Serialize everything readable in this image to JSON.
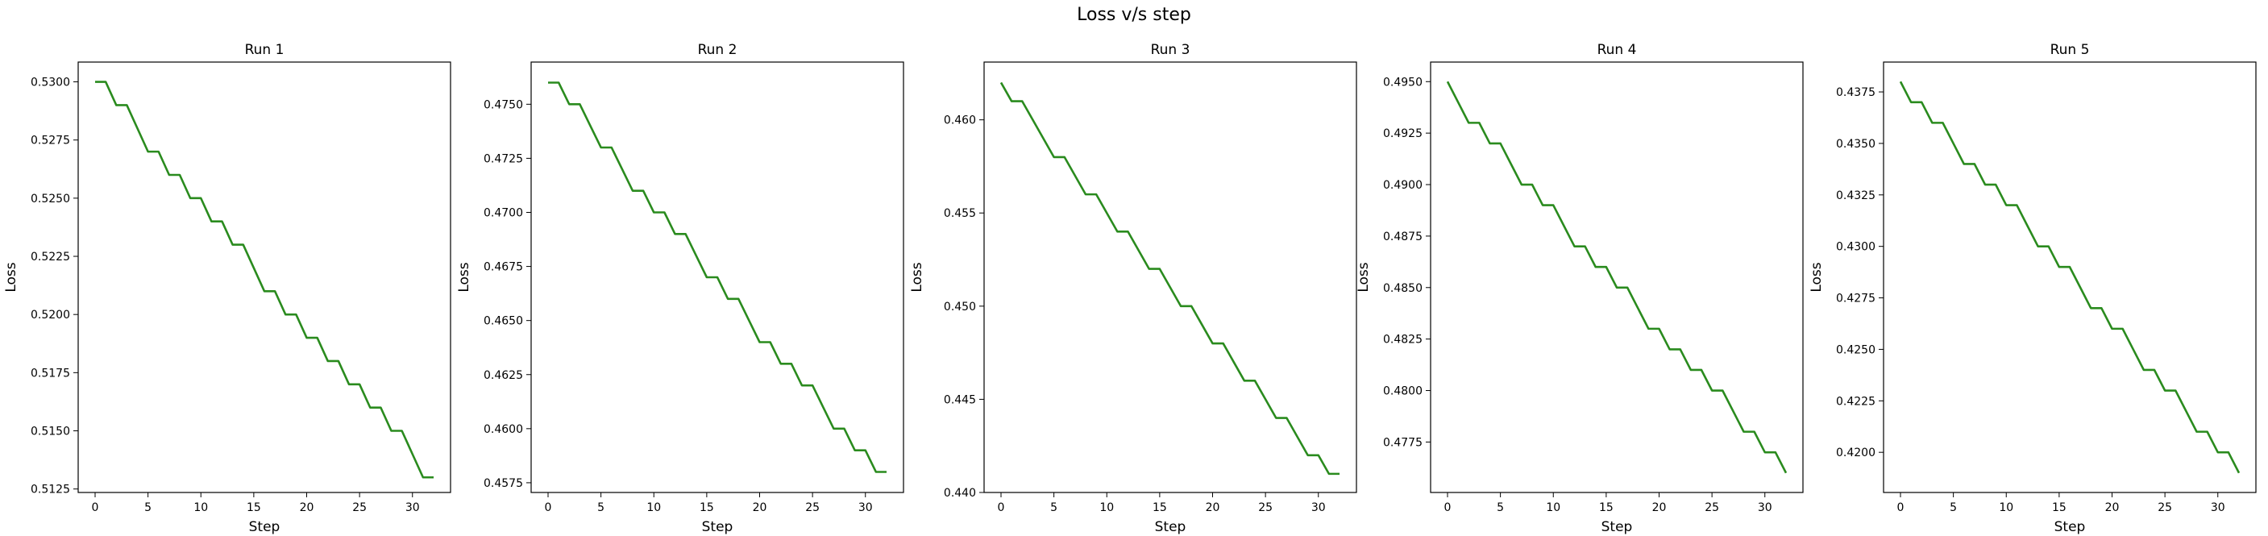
{
  "figure": {
    "title": "Loss v/s step",
    "line_color": "#2a8b1e"
  },
  "chart_data": [
    {
      "type": "line",
      "title": "Run 1",
      "xlabel": "Step",
      "ylabel": "Loss",
      "xlim": [
        -1.6,
        33.6
      ],
      "ylim": [
        0.51235,
        0.53085
      ],
      "xticks": [
        0,
        5,
        10,
        15,
        20,
        25,
        30
      ],
      "yticks": [
        0.5125,
        0.515,
        0.5175,
        0.52,
        0.5225,
        0.525,
        0.5275,
        0.53
      ],
      "ytick_labels": [
        "0.5125",
        "0.5150",
        "0.5175",
        "0.5200",
        "0.5225",
        "0.5250",
        "0.5275",
        "0.5300"
      ],
      "grid": false,
      "x": [
        0,
        1,
        2,
        3,
        4,
        5,
        6,
        7,
        8,
        9,
        10,
        11,
        12,
        13,
        14,
        15,
        16,
        17,
        18,
        19,
        20,
        21,
        22,
        23,
        24,
        25,
        26,
        27,
        28,
        29,
        30,
        31,
        32
      ],
      "y": [
        0.53,
        0.53,
        0.529,
        0.529,
        0.528,
        0.527,
        0.527,
        0.526,
        0.526,
        0.525,
        0.525,
        0.524,
        0.524,
        0.523,
        0.523,
        0.522,
        0.521,
        0.521,
        0.52,
        0.52,
        0.519,
        0.519,
        0.518,
        0.518,
        0.517,
        0.517,
        0.516,
        0.516,
        0.515,
        0.515,
        0.514,
        0.513,
        0.513
      ]
    },
    {
      "type": "line",
      "title": "Run 2",
      "xlabel": "Step",
      "ylabel": "Loss",
      "xlim": [
        -1.6,
        33.6
      ],
      "ylim": [
        0.45705,
        0.47695
      ],
      "xticks": [
        0,
        5,
        10,
        15,
        20,
        25,
        30
      ],
      "yticks": [
        0.4575,
        0.46,
        0.4625,
        0.465,
        0.4675,
        0.47,
        0.4725,
        0.475
      ],
      "ytick_labels": [
        "0.4575",
        "0.4600",
        "0.4625",
        "0.4650",
        "0.4675",
        "0.4700",
        "0.4725",
        "0.4750"
      ],
      "grid": false,
      "x": [
        0,
        1,
        2,
        3,
        4,
        5,
        6,
        7,
        8,
        9,
        10,
        11,
        12,
        13,
        14,
        15,
        16,
        17,
        18,
        19,
        20,
        21,
        22,
        23,
        24,
        25,
        26,
        27,
        28,
        29,
        30,
        31,
        32
      ],
      "y": [
        0.476,
        0.476,
        0.475,
        0.475,
        0.474,
        0.473,
        0.473,
        0.472,
        0.471,
        0.471,
        0.47,
        0.47,
        0.469,
        0.469,
        0.468,
        0.467,
        0.467,
        0.466,
        0.466,
        0.465,
        0.464,
        0.464,
        0.463,
        0.463,
        0.462,
        0.462,
        0.461,
        0.46,
        0.46,
        0.459,
        0.459,
        0.458,
        0.458
      ]
    },
    {
      "type": "line",
      "title": "Run 3",
      "xlabel": "Step",
      "ylabel": "Loss",
      "xlim": [
        -1.6,
        33.6
      ],
      "ylim": [
        0.44,
        0.4631
      ],
      "xticks": [
        0,
        5,
        10,
        15,
        20,
        25,
        30
      ],
      "yticks": [
        0.44,
        0.445,
        0.45,
        0.455,
        0.46
      ],
      "ytick_labels": [
        "0.440",
        "0.445",
        "0.450",
        "0.455",
        "0.460"
      ],
      "grid": false,
      "x": [
        0,
        1,
        2,
        3,
        4,
        5,
        6,
        7,
        8,
        9,
        10,
        11,
        12,
        13,
        14,
        15,
        16,
        17,
        18,
        19,
        20,
        21,
        22,
        23,
        24,
        25,
        26,
        27,
        28,
        29,
        30,
        31,
        32
      ],
      "y": [
        0.462,
        0.461,
        0.461,
        0.46,
        0.459,
        0.458,
        0.458,
        0.457,
        0.456,
        0.456,
        0.455,
        0.454,
        0.454,
        0.453,
        0.452,
        0.452,
        0.451,
        0.45,
        0.45,
        0.449,
        0.448,
        0.448,
        0.447,
        0.446,
        0.446,
        0.445,
        0.444,
        0.444,
        0.443,
        0.442,
        0.442,
        0.441,
        0.441
      ]
    },
    {
      "type": "line",
      "title": "Run 4",
      "xlabel": "Step",
      "ylabel": "Loss",
      "xlim": [
        -1.6,
        33.6
      ],
      "ylim": [
        0.47505,
        0.49595
      ],
      "xticks": [
        0,
        5,
        10,
        15,
        20,
        25,
        30
      ],
      "yticks": [
        0.4775,
        0.48,
        0.4825,
        0.485,
        0.4875,
        0.49,
        0.4925,
        0.495
      ],
      "ytick_labels": [
        "0.4775",
        "0.4800",
        "0.4825",
        "0.4850",
        "0.4875",
        "0.4900",
        "0.4925",
        "0.4950"
      ],
      "grid": false,
      "x": [
        0,
        1,
        2,
        3,
        4,
        5,
        6,
        7,
        8,
        9,
        10,
        11,
        12,
        13,
        14,
        15,
        16,
        17,
        18,
        19,
        20,
        21,
        22,
        23,
        24,
        25,
        26,
        27,
        28,
        29,
        30,
        31,
        32
      ],
      "y": [
        0.495,
        0.494,
        0.493,
        0.493,
        0.492,
        0.492,
        0.491,
        0.49,
        0.49,
        0.489,
        0.489,
        0.488,
        0.487,
        0.487,
        0.486,
        0.486,
        0.485,
        0.485,
        0.484,
        0.483,
        0.483,
        0.482,
        0.482,
        0.481,
        0.481,
        0.48,
        0.48,
        0.479,
        0.478,
        0.478,
        0.477,
        0.477,
        0.476
      ]
    },
    {
      "type": "line",
      "title": "Run 5",
      "xlabel": "Step",
      "ylabel": "Loss",
      "xlim": [
        -1.6,
        33.6
      ],
      "ylim": [
        0.41805,
        0.43895
      ],
      "xticks": [
        0,
        5,
        10,
        15,
        20,
        25,
        30
      ],
      "yticks": [
        0.42,
        0.4225,
        0.425,
        0.4275,
        0.43,
        0.4325,
        0.435,
        0.4375
      ],
      "ytick_labels": [
        "0.4200",
        "0.4225",
        "0.4250",
        "0.4275",
        "0.4300",
        "0.4325",
        "0.4350",
        "0.4375"
      ],
      "grid": false,
      "x": [
        0,
        1,
        2,
        3,
        4,
        5,
        6,
        7,
        8,
        9,
        10,
        11,
        12,
        13,
        14,
        15,
        16,
        17,
        18,
        19,
        20,
        21,
        22,
        23,
        24,
        25,
        26,
        27,
        28,
        29,
        30,
        31,
        32
      ],
      "y": [
        0.438,
        0.437,
        0.437,
        0.436,
        0.436,
        0.435,
        0.434,
        0.434,
        0.433,
        0.433,
        0.432,
        0.432,
        0.431,
        0.43,
        0.43,
        0.429,
        0.429,
        0.428,
        0.427,
        0.427,
        0.426,
        0.426,
        0.425,
        0.424,
        0.424,
        0.423,
        0.423,
        0.422,
        0.421,
        0.421,
        0.42,
        0.42,
        0.419
      ]
    }
  ]
}
